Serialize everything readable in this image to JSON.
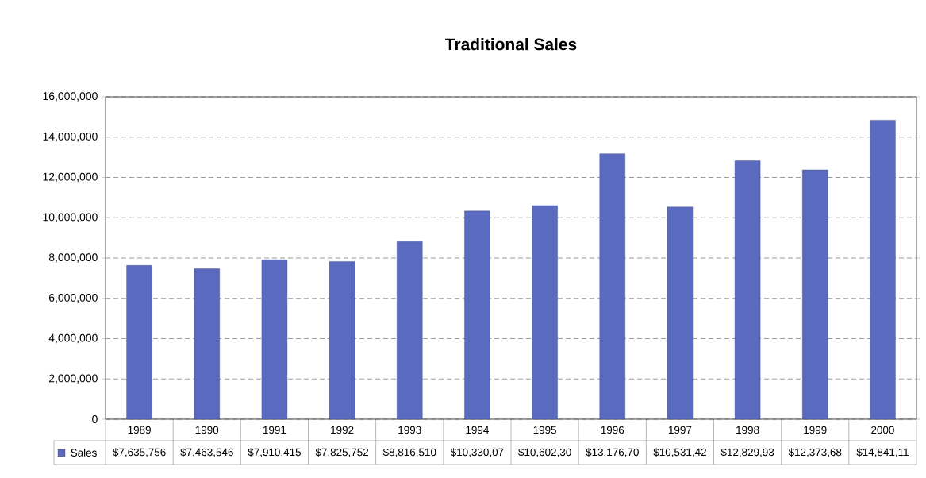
{
  "chart_data": {
    "type": "bar",
    "title": "Traditional Sales",
    "categories": [
      "1989",
      "1990",
      "1991",
      "1992",
      "1993",
      "1994",
      "1995",
      "1996",
      "1997",
      "1998",
      "1999",
      "2000"
    ],
    "series": [
      {
        "name": "Sales",
        "color": "#5a6bbf",
        "values": [
          7635756,
          7463546,
          7910415,
          7825752,
          8816510,
          10330070,
          10602300,
          13176700,
          10531420,
          12829930,
          12373680,
          14841110
        ],
        "value_labels": [
          "$7,635,756",
          "$7,463,546",
          "$7,910,415",
          "$7,825,752",
          "$8,816,510",
          "$10,330,07",
          "$10,602,30",
          "$13,176,70",
          "$10,531,42",
          "$12,829,93",
          "$12,373,68",
          "$14,841,11"
        ]
      }
    ],
    "ylim": [
      0,
      16000000
    ],
    "yticks": [
      0,
      {
        "value": 2000000,
        "label": "2,000,000"
      },
      {
        "value": 4000000,
        "label": "4,000,000"
      },
      {
        "value": 6000000,
        "label": "6,000,000"
      },
      {
        "value": 8000000,
        "label": "8,000,000"
      },
      {
        "value": 10000000,
        "label": "10,000,000"
      },
      {
        "value": 12000000,
        "label": "12,000,000"
      },
      {
        "value": 14000000,
        "label": "14,000,000"
      },
      {
        "value": 16000000,
        "label": "16,000,000"
      }
    ],
    "grid": "y"
  }
}
